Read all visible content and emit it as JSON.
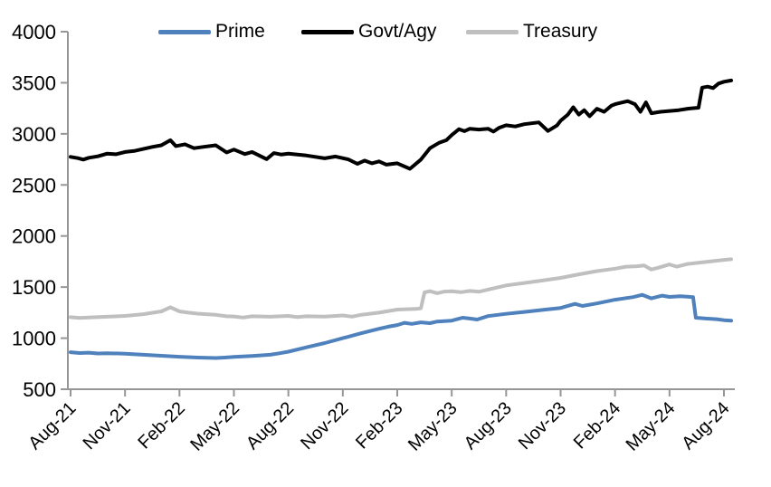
{
  "chart_data": {
    "type": "line",
    "title": "",
    "xlabel": "",
    "ylabel": "",
    "x_unit": "months since Aug-2021",
    "x_tick_labels": [
      "Aug-21",
      "Nov-21",
      "Feb-22",
      "May-22",
      "Aug-22",
      "Nov-22",
      "Feb-23",
      "May-23",
      "Aug-23",
      "Nov-23",
      "Feb-24",
      "May-24",
      "Aug-24"
    ],
    "x_tick_month_indices": [
      0,
      3,
      6,
      9,
      12,
      15,
      18,
      21,
      24,
      27,
      30,
      33,
      36
    ],
    "y_ticks": [
      500,
      1000,
      1500,
      2000,
      2500,
      3000,
      3500,
      4000
    ],
    "ylim": [
      500,
      4000
    ],
    "xlim_months": [
      0,
      36.6
    ],
    "grid": false,
    "legend_position": "top",
    "axis_color": "#969696",
    "text_color": "#000000",
    "series": [
      {
        "name": "Prime",
        "color": "#4F81BD",
        "line_width": 4,
        "points": [
          [
            0,
            862
          ],
          [
            0.5,
            854
          ],
          [
            1,
            858
          ],
          [
            1.5,
            850
          ],
          [
            2,
            853
          ],
          [
            3,
            848
          ],
          [
            4,
            838
          ],
          [
            5,
            828
          ],
          [
            6,
            818
          ],
          [
            7,
            810
          ],
          [
            8,
            806
          ],
          [
            8.5,
            810
          ],
          [
            9,
            816
          ],
          [
            10,
            826
          ],
          [
            11,
            838
          ],
          [
            11.5,
            852
          ],
          [
            12,
            868
          ],
          [
            13,
            910
          ],
          [
            14,
            952
          ],
          [
            15,
            1000
          ],
          [
            16,
            1048
          ],
          [
            17,
            1092
          ],
          [
            17.5,
            1112
          ],
          [
            18,
            1128
          ],
          [
            18.4,
            1150
          ],
          [
            18.8,
            1140
          ],
          [
            19.3,
            1155
          ],
          [
            19.8,
            1147
          ],
          [
            20.2,
            1163
          ],
          [
            21,
            1172
          ],
          [
            21.6,
            1200
          ],
          [
            22,
            1192
          ],
          [
            22.4,
            1182
          ],
          [
            23,
            1216
          ],
          [
            24,
            1238
          ],
          [
            25,
            1257
          ],
          [
            26,
            1276
          ],
          [
            27,
            1296
          ],
          [
            27.8,
            1336
          ],
          [
            28.2,
            1315
          ],
          [
            29,
            1340
          ],
          [
            30,
            1376
          ],
          [
            31,
            1402
          ],
          [
            31.5,
            1424
          ],
          [
            32,
            1390
          ],
          [
            32.6,
            1416
          ],
          [
            33,
            1404
          ],
          [
            33.6,
            1410
          ],
          [
            34.3,
            1402
          ],
          [
            34.45,
            1200
          ],
          [
            35,
            1192
          ],
          [
            35.6,
            1186
          ],
          [
            36,
            1176
          ],
          [
            36.4,
            1172
          ]
        ]
      },
      {
        "name": "Govt/Agy",
        "color": "#000000",
        "line_width": 4,
        "points": [
          [
            0,
            2775
          ],
          [
            0.4,
            2762
          ],
          [
            0.7,
            2748
          ],
          [
            1,
            2766
          ],
          [
            1.5,
            2780
          ],
          [
            2,
            2806
          ],
          [
            2.5,
            2800
          ],
          [
            3,
            2822
          ],
          [
            3.5,
            2832
          ],
          [
            4,
            2852
          ],
          [
            4.5,
            2872
          ],
          [
            5,
            2888
          ],
          [
            5.5,
            2938
          ],
          [
            5.8,
            2880
          ],
          [
            6.3,
            2898
          ],
          [
            6.8,
            2860
          ],
          [
            7.3,
            2872
          ],
          [
            8,
            2888
          ],
          [
            8.6,
            2818
          ],
          [
            9,
            2846
          ],
          [
            9.6,
            2802
          ],
          [
            10,
            2822
          ],
          [
            10.8,
            2752
          ],
          [
            11.2,
            2812
          ],
          [
            11.6,
            2798
          ],
          [
            12,
            2806
          ],
          [
            13,
            2788
          ],
          [
            14,
            2760
          ],
          [
            14.6,
            2778
          ],
          [
            15.3,
            2750
          ],
          [
            15.8,
            2706
          ],
          [
            16.2,
            2738
          ],
          [
            16.6,
            2712
          ],
          [
            17,
            2730
          ],
          [
            17.4,
            2698
          ],
          [
            18,
            2712
          ],
          [
            18.7,
            2658
          ],
          [
            19.3,
            2748
          ],
          [
            19.8,
            2860
          ],
          [
            20.3,
            2912
          ],
          [
            20.7,
            2938
          ],
          [
            21,
            2988
          ],
          [
            21.4,
            3046
          ],
          [
            21.7,
            3026
          ],
          [
            22,
            3050
          ],
          [
            22.5,
            3042
          ],
          [
            23,
            3050
          ],
          [
            23.3,
            3022
          ],
          [
            23.6,
            3058
          ],
          [
            24,
            3084
          ],
          [
            24.5,
            3072
          ],
          [
            25,
            3094
          ],
          [
            25.8,
            3112
          ],
          [
            26.3,
            3028
          ],
          [
            26.8,
            3082
          ],
          [
            27,
            3128
          ],
          [
            27.4,
            3188
          ],
          [
            27.7,
            3260
          ],
          [
            28,
            3188
          ],
          [
            28.3,
            3232
          ],
          [
            28.6,
            3172
          ],
          [
            29,
            3246
          ],
          [
            29.4,
            3216
          ],
          [
            29.8,
            3276
          ],
          [
            30,
            3290
          ],
          [
            30.7,
            3320
          ],
          [
            31.1,
            3290
          ],
          [
            31.4,
            3216
          ],
          [
            31.7,
            3308
          ],
          [
            32,
            3202
          ],
          [
            32.5,
            3216
          ],
          [
            33,
            3224
          ],
          [
            33.5,
            3232
          ],
          [
            34,
            3246
          ],
          [
            34.6,
            3256
          ],
          [
            34.8,
            3452
          ],
          [
            35.1,
            3462
          ],
          [
            35.4,
            3448
          ],
          [
            35.7,
            3492
          ],
          [
            36,
            3510
          ],
          [
            36.4,
            3522
          ]
        ]
      },
      {
        "name": "Treasury",
        "color": "#BFBFBF",
        "line_width": 4,
        "points": [
          [
            0,
            1205
          ],
          [
            0.5,
            1198
          ],
          [
            1,
            1202
          ],
          [
            2,
            1210
          ],
          [
            3,
            1218
          ],
          [
            4,
            1235
          ],
          [
            5,
            1262
          ],
          [
            5.5,
            1303
          ],
          [
            6,
            1262
          ],
          [
            6.5,
            1250
          ],
          [
            7,
            1240
          ],
          [
            8,
            1228
          ],
          [
            8.6,
            1214
          ],
          [
            9,
            1212
          ],
          [
            9.5,
            1202
          ],
          [
            10,
            1214
          ],
          [
            11,
            1210
          ],
          [
            12,
            1218
          ],
          [
            12.5,
            1206
          ],
          [
            13,
            1214
          ],
          [
            14,
            1211
          ],
          [
            15,
            1222
          ],
          [
            15.5,
            1211
          ],
          [
            16,
            1228
          ],
          [
            17,
            1250
          ],
          [
            18,
            1280
          ],
          [
            19,
            1286
          ],
          [
            19.3,
            1292
          ],
          [
            19.5,
            1448
          ],
          [
            19.8,
            1460
          ],
          [
            20.2,
            1440
          ],
          [
            20.6,
            1456
          ],
          [
            21,
            1460
          ],
          [
            21.5,
            1450
          ],
          [
            22,
            1462
          ],
          [
            22.5,
            1454
          ],
          [
            23,
            1476
          ],
          [
            24,
            1516
          ],
          [
            25,
            1540
          ],
          [
            26,
            1564
          ],
          [
            27,
            1590
          ],
          [
            28,
            1624
          ],
          [
            29,
            1656
          ],
          [
            30,
            1680
          ],
          [
            30.6,
            1700
          ],
          [
            31.2,
            1704
          ],
          [
            31.6,
            1712
          ],
          [
            32,
            1672
          ],
          [
            32.4,
            1690
          ],
          [
            33,
            1722
          ],
          [
            33.4,
            1700
          ],
          [
            34,
            1726
          ],
          [
            35,
            1746
          ],
          [
            36,
            1766
          ],
          [
            36.4,
            1772
          ]
        ]
      }
    ]
  }
}
